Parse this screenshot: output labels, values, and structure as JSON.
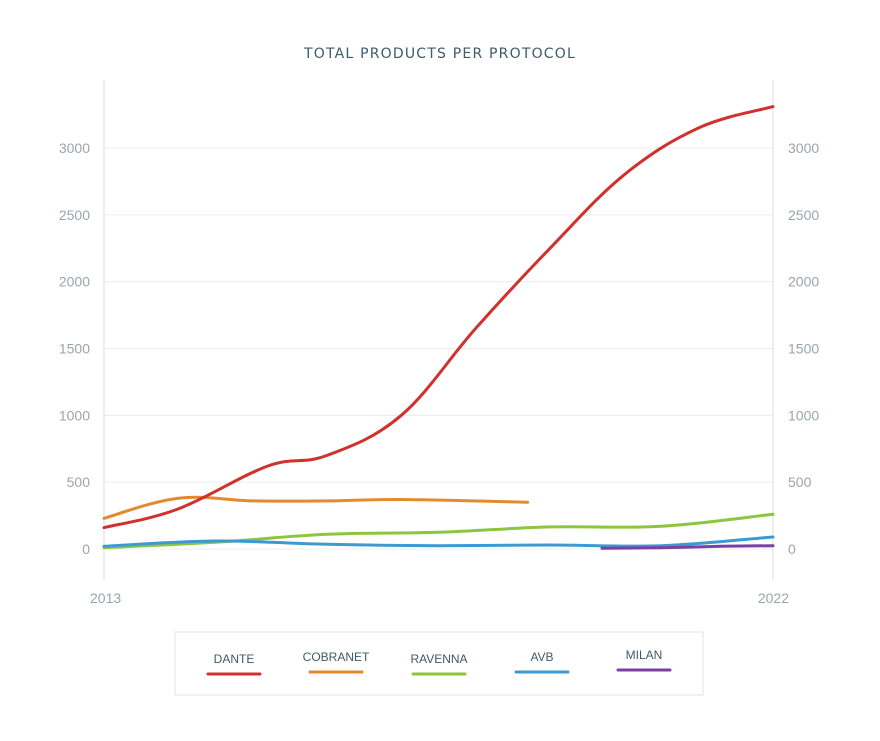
{
  "chart_data": {
    "type": "line",
    "title": "TOTAL PRODUCTS PER PROTOCOL",
    "xlabel": "",
    "ylabel": "",
    "xlim": [
      2013,
      2022
    ],
    "ylim": [
      -200,
      3500
    ],
    "yticks": [
      0,
      500,
      1000,
      1500,
      2000,
      2500,
      3000
    ],
    "xticks": [
      2013,
      2022
    ],
    "grid": true,
    "legend_position": "bottom",
    "series": [
      {
        "name": "DANTE",
        "color": "#d0312d",
        "x": [
          2013,
          2014,
          2015.2,
          2016,
          2017,
          2018,
          2019,
          2020,
          2021,
          2022
        ],
        "y": [
          160,
          300,
          620,
          700,
          1000,
          1650,
          2250,
          2800,
          3150,
          3310
        ]
      },
      {
        "name": "COBRANET",
        "color": "#e38a2f",
        "x": [
          2013,
          2014,
          2015,
          2016,
          2017,
          2018.7
        ],
        "y": [
          230,
          380,
          360,
          360,
          370,
          350
        ]
      },
      {
        "name": "RAVENNA",
        "color": "#8cc63f",
        "x": [
          2013,
          2014.5,
          2016,
          2017.5,
          2019,
          2020.5,
          2022
        ],
        "y": [
          10,
          50,
          110,
          125,
          165,
          170,
          260
        ]
      },
      {
        "name": "AVB",
        "color": "#3d9ad1",
        "x": [
          2013,
          2014.5,
          2016,
          2017.5,
          2019,
          2020.5,
          2022
        ],
        "y": [
          20,
          60,
          35,
          25,
          30,
          25,
          90
        ]
      },
      {
        "name": "MILAN",
        "color": "#7b3fa6",
        "x": [
          2019.7,
          2020.5,
          2021.3,
          2022
        ],
        "y": [
          5,
          10,
          20,
          25
        ]
      }
    ]
  }
}
